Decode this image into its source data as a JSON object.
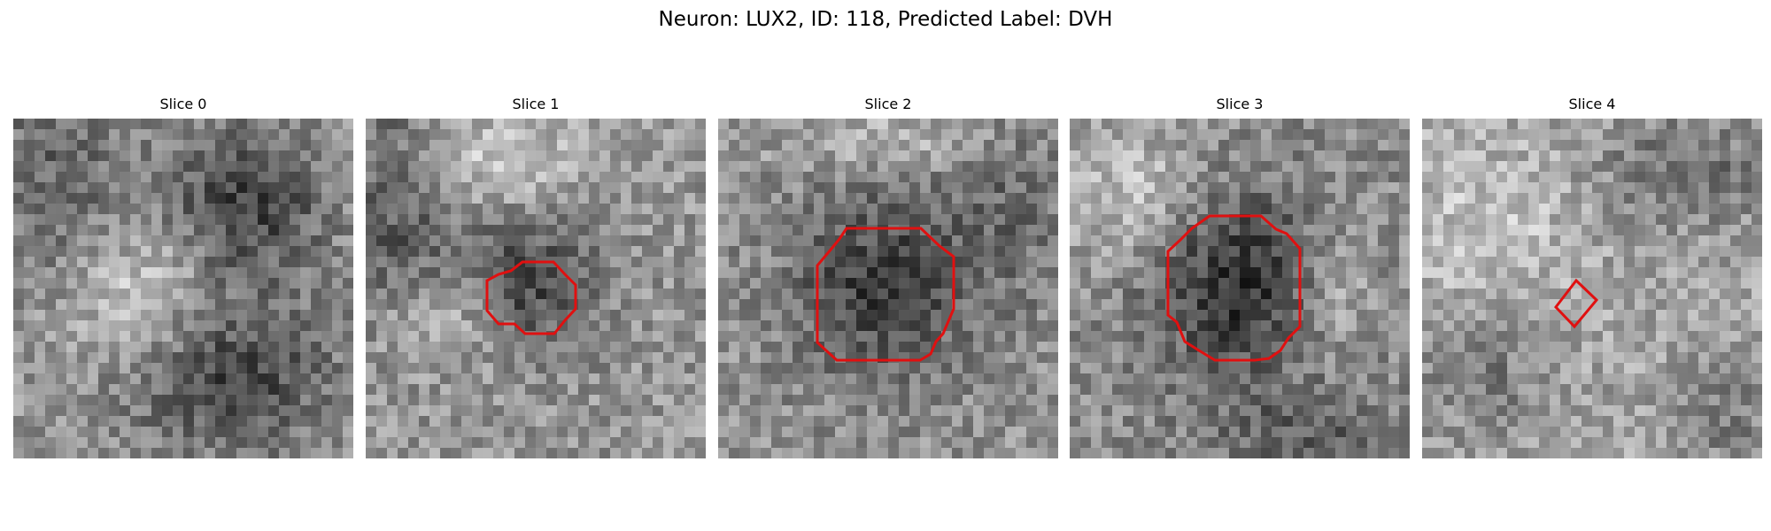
{
  "figure": {
    "title": "Neuron: LUX2, ID: 118, Predicted Label: DVH",
    "outline_color": "#e01010",
    "panels": [
      {
        "title": "Slice 0",
        "has_outline": false,
        "image_description": "noisy grayscale pixel patch, dark blobs top-right and bottom-center, bright diagonal band"
      },
      {
        "title": "Slice 1",
        "has_outline": true,
        "image_description": "noisy grayscale patch with dark round cell outlined in red near center"
      },
      {
        "title": "Slice 2",
        "has_outline": true,
        "image_description": "noisy grayscale patch with large dark round cell outlined in red at center"
      },
      {
        "title": "Slice 3",
        "has_outline": true,
        "image_description": "noisy grayscale patch with large dark cell outlined in red at center"
      },
      {
        "title": "Slice 4",
        "has_outline": true,
        "image_description": "mostly bright noisy patch with small red diamond outline at center"
      }
    ]
  }
}
